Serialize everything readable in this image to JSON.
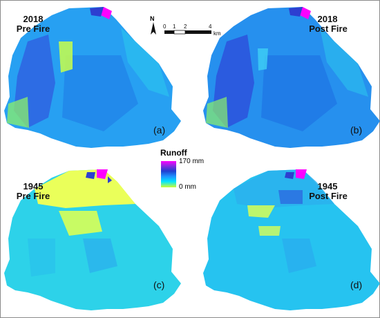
{
  "panels": [
    {
      "year": "2018",
      "phase": "Pre Fire",
      "label": "(a)",
      "fill": "#27a0f2"
    },
    {
      "year": "2018",
      "phase": "Post Fire",
      "label": "(b)",
      "fill": "#2690ee"
    },
    {
      "year": "1945",
      "phase": "Pre Fire",
      "label": "(c)",
      "fill": "#2dd2e9"
    },
    {
      "year": "1945",
      "phase": "Post Fire",
      "label": "(d)",
      "fill": "#26c3f0"
    }
  ],
  "legend": {
    "title": "Runoff",
    "max_label": "170 mm",
    "min_label": "0 mm"
  },
  "north_arrow": {
    "label": "N"
  },
  "scale_bar": {
    "ticks": [
      "0",
      "1",
      "2",
      "4"
    ],
    "unit": "km"
  },
  "colors": {
    "high": "#ff00ff",
    "mid_high": "#1f3fcf",
    "mid": "#1e90ff",
    "mid_low": "#00e5ff",
    "low": "#ccff33"
  }
}
